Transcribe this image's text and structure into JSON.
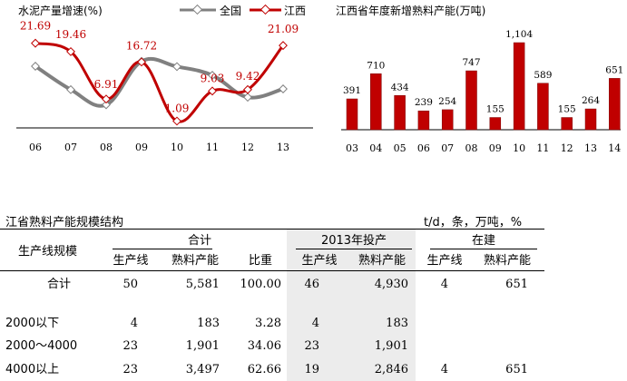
{
  "chart_data": [
    {
      "type": "line",
      "title": "水泥产量增速(%)",
      "categories": [
        "06",
        "07",
        "08",
        "09",
        "10",
        "11",
        "12",
        "13"
      ],
      "series": [
        {
          "name": "全国",
          "values": [
            15.6,
            9.4,
            5.4,
            16.9,
            15.5,
            13.2,
            7.4,
            9.6
          ],
          "color": "#808080"
        },
        {
          "name": "江西",
          "values": [
            21.69,
            19.46,
            6.91,
            16.72,
            1.09,
            9.03,
            9.42,
            21.09
          ],
          "color": "#c00000"
        }
      ],
      "data_labels": [
        "21.69",
        "19.46",
        "6.91",
        "16.72",
        "1.09",
        "9.03",
        "9.42",
        "21.09"
      ],
      "ylim": [
        0,
        24
      ]
    },
    {
      "type": "bar",
      "title": "江西省年度新增熟料产能(万吨)",
      "categories": [
        "03",
        "04",
        "05",
        "06",
        "07",
        "08",
        "09",
        "10",
        "11",
        "12",
        "13",
        "14"
      ],
      "values": [
        391,
        710,
        434,
        239,
        254,
        747,
        155,
        1104,
        589,
        155,
        264,
        651
      ],
      "color": "#c00000",
      "ylim": [
        0,
        1104
      ]
    }
  ],
  "table": {
    "title": "江省熟料产能规模结构",
    "unit": "t/d，条，万吨，%",
    "row_header": "生产线规模",
    "groups": {
      "total": "合计",
      "y2013": "2013年投产",
      "building": "在建"
    },
    "subheaders": {
      "lines": "生产线",
      "capacity": "熟料产能",
      "ratio": "比重",
      "lines_2013": "生产线",
      "capacity_2013": "熟料产能",
      "lines_building": "生产线",
      "capacity_building": "熟料产能"
    },
    "rows": [
      {
        "label": "合计",
        "lines": "50",
        "capacity": "5,581",
        "ratio": "100.00",
        "lines_2013": "46",
        "capacity_2013": "4,930",
        "lines_building": "4",
        "capacity_building": "651"
      },
      {
        "label": "",
        "lines": "",
        "capacity": "",
        "ratio": "",
        "lines_2013": "",
        "capacity_2013": "",
        "lines_building": "",
        "capacity_building": ""
      },
      {
        "label": "2000以下",
        "lines": "4",
        "capacity": "183",
        "ratio": "3.28",
        "lines_2013": "4",
        "capacity_2013": "183",
        "lines_building": "",
        "capacity_building": ""
      },
      {
        "label": "2000～4000",
        "lines": "23",
        "capacity": "1,901",
        "ratio": "34.06",
        "lines_2013": "23",
        "capacity_2013": "1,901",
        "lines_building": "",
        "capacity_building": ""
      },
      {
        "label": "4000以上",
        "lines": "23",
        "capacity": "3,497",
        "ratio": "62.66",
        "lines_2013": "19",
        "capacity_2013": "2,846",
        "lines_building": "4",
        "capacity_building": "651"
      }
    ]
  }
}
